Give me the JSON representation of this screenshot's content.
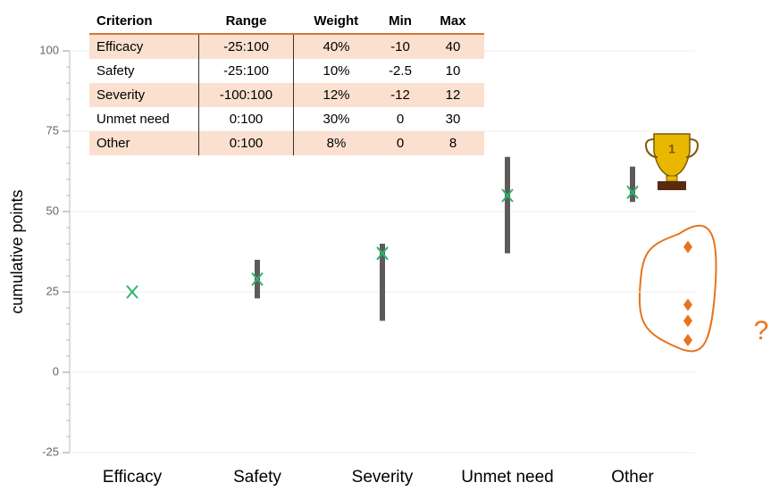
{
  "chart_data": {
    "type": "range",
    "y_label": "cumulative points",
    "categories": [
      "Efficacy",
      "Safety",
      "Severity",
      "Unmet need",
      "Other"
    ],
    "values": [
      25,
      29,
      37,
      55,
      56
    ],
    "color": "#2db36a",
    "ranges": [
      null,
      [
        23,
        35
      ],
      [
        16,
        40
      ],
      [
        37,
        67
      ],
      [
        53,
        64
      ]
    ],
    "range_color": "#5f5a5a",
    "extra_points": [
      39,
      21,
      16,
      10
    ],
    "extra_color": "#e8731c",
    "annotation": "?",
    "ylim": [
      -25,
      100
    ],
    "yticks": [
      -25,
      0,
      25,
      50,
      75,
      100
    ],
    "grid": true
  },
  "table": {
    "columns": [
      "Criterion",
      "Range",
      "Weight",
      "Min",
      "Max"
    ],
    "rows": [
      [
        "Efficacy",
        "-25:100",
        "40%",
        "-10",
        "40"
      ],
      [
        "Safety",
        "-25:100",
        "10%",
        "-2.5",
        "10"
      ],
      [
        "Severity",
        "-100:100",
        "12%",
        "-12",
        "12"
      ],
      [
        "Unmet need",
        "0:100",
        "30%",
        "0",
        "30"
      ],
      [
        "Other",
        "0:100",
        "8%",
        "0",
        "8"
      ]
    ]
  }
}
